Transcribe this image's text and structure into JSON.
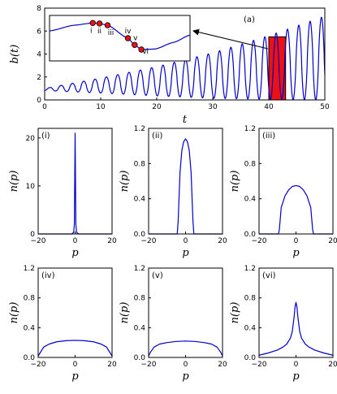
{
  "chart_data": [
    {
      "id": "main",
      "type": "line",
      "panel_label": "(a)",
      "xlabel": "t",
      "ylabel": "b(t)",
      "xlim": [
        0,
        50
      ],
      "ylim": [
        0,
        8
      ],
      "xticks": [
        "0",
        "10",
        "20",
        "30",
        "40",
        "50"
      ],
      "yticks": [
        "0",
        "2",
        "4",
        "6",
        "8"
      ],
      "series_color": "#0000cc",
      "highlight": {
        "t_range": [
          40,
          43
        ],
        "b_range": [
          0,
          5.5
        ],
        "color": "#ee1111"
      },
      "envelope": {
        "t": [
          0,
          10,
          20,
          30,
          40,
          50
        ],
        "peak": [
          1.0,
          1.9,
          2.9,
          4.1,
          5.6,
          7.3
        ],
        "trough": [
          0.82,
          0.6,
          0.35,
          0.15,
          0.05,
          0.0
        ]
      }
    },
    {
      "id": "inset",
      "type": "line",
      "points": [
        {
          "label": "i",
          "t": 40.9,
          "b": 5.47
        },
        {
          "label": "ii",
          "t": 41.15,
          "b": 5.42
        },
        {
          "label": "iii",
          "t": 41.45,
          "b": 5.25
        },
        {
          "label": "iv",
          "t": 42.2,
          "b": 4.0
        },
        {
          "label": "v",
          "t": 42.45,
          "b": 3.35
        },
        {
          "label": "vi",
          "t": 42.7,
          "b": 2.9
        }
      ]
    },
    {
      "id": "p1",
      "type": "line",
      "panel_label": "(i)",
      "xlabel": "p",
      "ylabel": "n(p)",
      "xlim": [
        -20,
        20
      ],
      "ylim": [
        0,
        22
      ],
      "xticks": [
        "−20",
        "0",
        "20"
      ],
      "yticks": [
        "0",
        "10",
        "20"
      ],
      "x": [
        -20,
        -2,
        -0.8,
        -0.4,
        0,
        0.4,
        0.8,
        2,
        20
      ],
      "y": [
        0,
        0,
        0.3,
        2,
        21,
        2,
        0.3,
        0,
        0
      ]
    },
    {
      "id": "p2",
      "type": "line",
      "panel_label": "(ii)",
      "xlabel": "p",
      "ylabel": "n(p)",
      "xlim": [
        -20,
        20
      ],
      "ylim": [
        0,
        1.2
      ],
      "xticks": [
        "−20",
        "0",
        "20"
      ],
      "yticks": [
        "0.0",
        "0.4",
        "0.8",
        "1.2"
      ],
      "x": [
        -20,
        -4.5,
        -4,
        -3,
        -2,
        -1,
        0,
        1,
        2,
        3,
        4,
        4.5,
        20
      ],
      "y": [
        0,
        0,
        0.15,
        0.7,
        0.95,
        1.05,
        1.08,
        1.05,
        0.95,
        0.7,
        0.15,
        0,
        0
      ]
    },
    {
      "id": "p3",
      "type": "line",
      "panel_label": "(iii)",
      "xlabel": "p",
      "ylabel": "n(p)",
      "xlim": [
        -20,
        20
      ],
      "ylim": [
        0,
        1.2
      ],
      "xticks": [
        "−20",
        "0",
        "20"
      ],
      "yticks": [
        "0.0",
        "0.4",
        "0.8",
        "1.2"
      ],
      "x": [
        -20,
        -9.5,
        -9,
        -8,
        -6,
        -4,
        -2,
        0,
        2,
        4,
        6,
        8,
        9,
        9.5,
        20
      ],
      "y": [
        0,
        0,
        0.05,
        0.3,
        0.43,
        0.5,
        0.54,
        0.55,
        0.54,
        0.5,
        0.43,
        0.3,
        0.05,
        0,
        0
      ]
    },
    {
      "id": "p4",
      "type": "line",
      "panel_label": "(iv)",
      "xlabel": "p",
      "ylabel": "n(p)",
      "xlim": [
        -20,
        20
      ],
      "ylim": [
        0,
        1.2
      ],
      "xticks": [
        "−20",
        "0",
        "20"
      ],
      "yticks": [
        "0.0",
        "0.4",
        "0.8",
        "1.2"
      ],
      "x": [
        -20,
        -19,
        -17,
        -14,
        -10,
        -5,
        0,
        5,
        10,
        14,
        17,
        19,
        20
      ],
      "y": [
        0.02,
        0.06,
        0.14,
        0.18,
        0.21,
        0.225,
        0.23,
        0.225,
        0.21,
        0.18,
        0.14,
        0.06,
        0.02
      ]
    },
    {
      "id": "p5",
      "type": "line",
      "panel_label": "(v)",
      "xlabel": "p",
      "ylabel": "n(p)",
      "xlim": [
        -20,
        20
      ],
      "ylim": [
        0,
        1.2
      ],
      "xticks": [
        "−20",
        "0",
        "20"
      ],
      "yticks": [
        "0.0",
        "0.4",
        "0.8",
        "1.2"
      ],
      "x": [
        -20,
        -19,
        -17,
        -14,
        -10,
        -5,
        0,
        5,
        10,
        14,
        17,
        19,
        20
      ],
      "y": [
        0.02,
        0.07,
        0.14,
        0.18,
        0.2,
        0.215,
        0.22,
        0.215,
        0.2,
        0.18,
        0.14,
        0.07,
        0.02
      ]
    },
    {
      "id": "p6",
      "type": "line",
      "panel_label": "(vi)",
      "xlabel": "p",
      "ylabel": "n(p)",
      "xlim": [
        -20,
        20
      ],
      "ylim": [
        0,
        1.2
      ],
      "xticks": [
        "−20",
        "0",
        "20"
      ],
      "yticks": [
        "0.0",
        "0.4",
        "0.8",
        "1.2"
      ],
      "x": [
        -20,
        -15,
        -10,
        -7,
        -5,
        -3,
        -2,
        -1,
        -0.5,
        0,
        0.5,
        1,
        2,
        3,
        5,
        7,
        10,
        15,
        20
      ],
      "y": [
        0.03,
        0.06,
        0.1,
        0.14,
        0.18,
        0.26,
        0.35,
        0.55,
        0.68,
        0.74,
        0.68,
        0.55,
        0.35,
        0.26,
        0.18,
        0.14,
        0.1,
        0.06,
        0.03
      ]
    }
  ]
}
